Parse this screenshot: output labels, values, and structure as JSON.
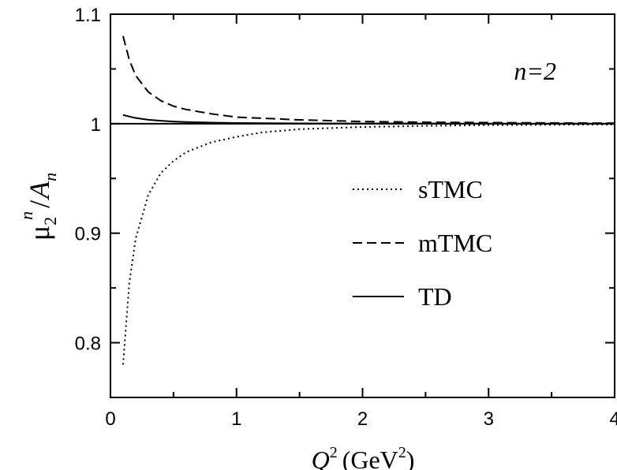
{
  "chart_data": {
    "type": "line",
    "annotation": "n=2",
    "xlabel": {
      "base": "Q",
      "sup1": "2",
      "unit_open": "(GeV",
      "sup2": "2",
      "unit_close": ")"
    },
    "ylabel": {
      "mu": "μ",
      "sub": "2",
      "sup": "n",
      "slash": "/",
      "A": "A",
      "A_sub": "n"
    },
    "xlim": [
      0,
      4
    ],
    "ylim": [
      0.75,
      1.1
    ],
    "x_ticks": [
      "0",
      "1",
      "2",
      "3",
      "4"
    ],
    "y_ticks": [
      "0.8",
      "0.9",
      "1",
      "1.1"
    ],
    "y_tick_values": [
      0.8,
      0.9,
      1.0,
      1.1
    ],
    "reference_line": 1.0,
    "legend_position": "center-right",
    "series": [
      {
        "name": "sTMC",
        "style": "dotted",
        "x": [
          0.1,
          0.15,
          0.2,
          0.3,
          0.4,
          0.5,
          0.6,
          0.8,
          1.0,
          1.2,
          1.5,
          2.0,
          2.5,
          3.0,
          3.5,
          4.0
        ],
        "y": [
          0.78,
          0.855,
          0.895,
          0.935,
          0.955,
          0.966,
          0.974,
          0.983,
          0.988,
          0.992,
          0.995,
          0.997,
          0.998,
          0.9987,
          0.999,
          0.9993
        ]
      },
      {
        "name": "mTMC",
        "style": "dashed",
        "x": [
          0.1,
          0.15,
          0.2,
          0.3,
          0.4,
          0.5,
          0.6,
          0.8,
          1.0,
          1.2,
          1.5,
          2.0,
          2.5,
          3.0,
          3.5,
          4.0
        ],
        "y": [
          1.08,
          1.058,
          1.044,
          1.029,
          1.021,
          1.016,
          1.013,
          1.009,
          1.006,
          1.005,
          1.0035,
          1.002,
          1.0013,
          1.001,
          1.0007,
          1.0005
        ]
      },
      {
        "name": "TD",
        "style": "solid",
        "x": [
          0.1,
          0.15,
          0.2,
          0.3,
          0.4,
          0.5,
          0.6,
          0.8,
          1.0,
          1.5,
          2.0,
          3.0,
          4.0
        ],
        "y": [
          1.008,
          1.0065,
          1.0052,
          1.0036,
          1.0027,
          1.002,
          1.0015,
          1.001,
          1.0006,
          1.0003,
          1.0002,
          1.0001,
          1.0
        ]
      }
    ]
  }
}
